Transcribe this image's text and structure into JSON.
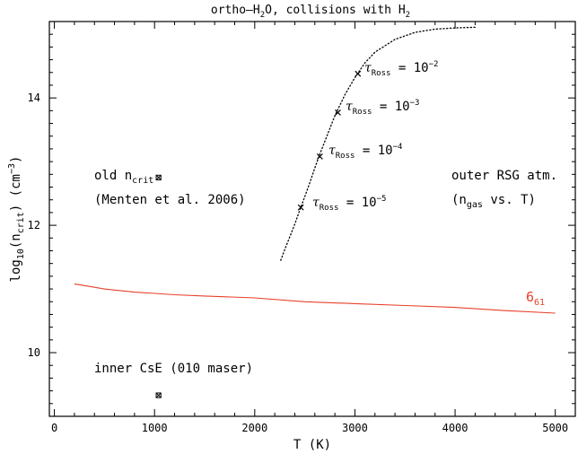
{
  "chart_data": {
    "type": "line",
    "title": "ortho–H₂O, collisions with H₂",
    "xlabel": "T (K)",
    "ylabel": "log₁₀(n_crit) (cm⁻³)",
    "xlim": [
      -50,
      5200
    ],
    "ylim": [
      9.0,
      15.2
    ],
    "xticks": [
      0,
      1000,
      2000,
      3000,
      4000,
      5000
    ],
    "yticks": [
      10,
      12,
      14
    ],
    "series": [
      {
        "name": "6₆₁",
        "color": "#e8402a",
        "style": "solid",
        "x": [
          200,
          500,
          800,
          1000,
          1200,
          1500,
          2000,
          2500,
          3000,
          3500,
          4000,
          4500,
          5000
        ],
        "y": [
          11.08,
          11.0,
          10.95,
          10.93,
          10.91,
          10.89,
          10.86,
          10.8,
          10.77,
          10.74,
          10.71,
          10.66,
          10.62
        ]
      },
      {
        "name": "outer RSG atm.",
        "color": "#000000",
        "style": "dotted",
        "x": [
          2260,
          2300,
          2350,
          2400,
          2450,
          2500,
          2550,
          2600,
          2650,
          2700,
          2800,
          2900,
          3000,
          3100,
          3200,
          3400,
          3600,
          3800,
          4000,
          4200
        ],
        "y": [
          11.45,
          11.62,
          11.82,
          12.02,
          12.24,
          12.45,
          12.67,
          12.9,
          13.12,
          13.32,
          13.72,
          14.05,
          14.32,
          14.55,
          14.72,
          14.92,
          15.03,
          15.08,
          15.1,
          15.11
        ]
      }
    ],
    "markers": [
      {
        "symbol": "x",
        "x": 2460,
        "y": 12.28,
        "label": "τ_Ross = 10⁻⁵"
      },
      {
        "symbol": "x",
        "x": 2650,
        "y": 13.08,
        "label": "τ_Ross = 10⁻⁴"
      },
      {
        "symbol": "x",
        "x": 2830,
        "y": 13.77,
        "label": "τ_Ross = 10⁻³"
      },
      {
        "symbol": "x",
        "x": 3030,
        "y": 14.38,
        "label": "τ_Ross = 10⁻²"
      }
    ],
    "points": [
      {
        "symbol": "boxed-x",
        "x": 1040,
        "y": 12.75,
        "label": "old n_crit (Menten et al. 2006)"
      },
      {
        "symbol": "boxed-x",
        "x": 1040,
        "y": 9.33,
        "label": "inner CsE (010 maser)"
      }
    ],
    "annotations": [
      {
        "text": "old n",
        "sub": "crit",
        "rest": ""
      },
      {
        "text": "(Menten et al. 2006)"
      },
      {
        "text": "inner CsE (010 maser)"
      },
      {
        "text": "outer RSG atm."
      },
      {
        "text": "(n",
        "sub": "gas",
        "rest": " vs. T)"
      },
      {
        "text": "6",
        "sub": "61"
      }
    ]
  }
}
